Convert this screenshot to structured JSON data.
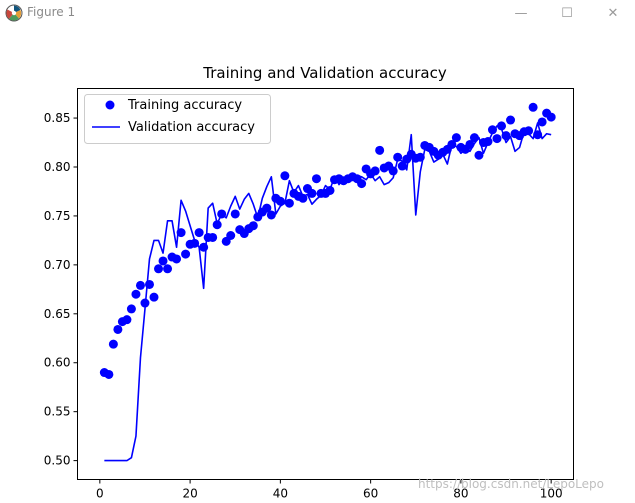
{
  "window": {
    "title": "Figure 1",
    "controls": {
      "minimize": "—",
      "maximize": "☐",
      "close": "✕"
    }
  },
  "watermark": "https://blog.csdn.net/LepoLepo",
  "colors": {
    "series": "#0000ff",
    "axis": "#000000",
    "background": "#ffffff"
  },
  "chart_data": {
    "type": "line",
    "title": "Training and Validation accuracy",
    "xlabel": "",
    "ylabel": "",
    "xlim": [
      -4.95,
      104.95
    ],
    "ylim": [
      0.4807,
      0.8802
    ],
    "xticks": [
      0,
      20,
      40,
      60,
      80,
      100
    ],
    "yticks": [
      0.5,
      0.55,
      0.6,
      0.65,
      0.7,
      0.75,
      0.8,
      0.85
    ],
    "grid": false,
    "legend": {
      "placement": "upper-left"
    },
    "series": [
      {
        "name": "Training accuracy",
        "style": "markers",
        "x": [
          1,
          2,
          3,
          4,
          5,
          6,
          7,
          8,
          9,
          10,
          11,
          12,
          13,
          14,
          15,
          16,
          17,
          18,
          19,
          20,
          21,
          22,
          23,
          24,
          25,
          26,
          27,
          28,
          29,
          30,
          31,
          32,
          33,
          34,
          35,
          36,
          37,
          38,
          39,
          40,
          41,
          42,
          43,
          44,
          45,
          46,
          47,
          48,
          49,
          50,
          51,
          52,
          53,
          54,
          55,
          56,
          57,
          58,
          59,
          60,
          61,
          62,
          63,
          64,
          65,
          66,
          67,
          68,
          69,
          70,
          71,
          72,
          73,
          74,
          75,
          76,
          77,
          78,
          79,
          80,
          81,
          82,
          83,
          84,
          85,
          86,
          87,
          88,
          89,
          90,
          91,
          92,
          93,
          94,
          95,
          96,
          97,
          98,
          99,
          100
        ],
        "values": [
          0.59,
          0.588,
          0.619,
          0.634,
          0.642,
          0.644,
          0.655,
          0.67,
          0.679,
          0.661,
          0.68,
          0.667,
          0.696,
          0.704,
          0.696,
          0.708,
          0.706,
          0.733,
          0.711,
          0.721,
          0.722,
          0.733,
          0.718,
          0.728,
          0.728,
          0.741,
          0.752,
          0.724,
          0.73,
          0.752,
          0.736,
          0.732,
          0.737,
          0.74,
          0.749,
          0.754,
          0.758,
          0.751,
          0.768,
          0.765,
          0.791,
          0.763,
          0.773,
          0.77,
          0.768,
          0.778,
          0.773,
          0.788,
          0.773,
          0.773,
          0.776,
          0.787,
          0.788,
          0.786,
          0.788,
          0.79,
          0.788,
          0.783,
          0.798,
          0.793,
          0.796,
          0.817,
          0.799,
          0.801,
          0.796,
          0.81,
          0.801,
          0.808,
          0.813,
          0.809,
          0.81,
          0.822,
          0.82,
          0.816,
          0.812,
          0.815,
          0.818,
          0.823,
          0.83,
          0.82,
          0.818,
          0.823,
          0.83,
          0.812,
          0.825,
          0.826,
          0.838,
          0.829,
          0.842,
          0.832,
          0.848,
          0.834,
          0.832,
          0.836,
          0.837,
          0.861,
          0.833,
          0.846,
          0.855,
          0.851
        ]
      },
      {
        "name": "Validation accuracy",
        "style": "line",
        "x": [
          1,
          2,
          3,
          4,
          5,
          6,
          7,
          8,
          9,
          10,
          11,
          12,
          13,
          14,
          15,
          16,
          17,
          18,
          19,
          20,
          21,
          22,
          23,
          24,
          25,
          26,
          27,
          28,
          29,
          30,
          31,
          32,
          33,
          34,
          35,
          36,
          37,
          38,
          39,
          40,
          41,
          42,
          43,
          44,
          45,
          46,
          47,
          48,
          49,
          50,
          51,
          52,
          53,
          54,
          55,
          56,
          57,
          58,
          59,
          60,
          61,
          62,
          63,
          64,
          65,
          66,
          67,
          68,
          69,
          70,
          71,
          72,
          73,
          74,
          75,
          76,
          77,
          78,
          79,
          80,
          81,
          82,
          83,
          84,
          85,
          86,
          87,
          88,
          89,
          90,
          91,
          92,
          93,
          94,
          95,
          96,
          97,
          98,
          99,
          100
        ],
        "values": [
          0.5,
          0.5,
          0.5,
          0.5,
          0.5,
          0.5,
          0.503,
          0.525,
          0.605,
          0.655,
          0.706,
          0.725,
          0.725,
          0.712,
          0.745,
          0.745,
          0.718,
          0.766,
          0.755,
          0.74,
          0.725,
          0.718,
          0.676,
          0.758,
          0.763,
          0.742,
          0.752,
          0.748,
          0.76,
          0.77,
          0.757,
          0.767,
          0.773,
          0.762,
          0.748,
          0.768,
          0.78,
          0.79,
          0.752,
          0.76,
          0.763,
          0.786,
          0.774,
          0.781,
          0.77,
          0.772,
          0.762,
          0.767,
          0.771,
          0.781,
          0.777,
          0.79,
          0.782,
          0.789,
          0.785,
          0.788,
          0.791,
          0.79,
          0.787,
          0.793,
          0.786,
          0.79,
          0.782,
          0.784,
          0.789,
          0.808,
          0.806,
          0.797,
          0.833,
          0.751,
          0.795,
          0.818,
          0.816,
          0.805,
          0.808,
          0.813,
          0.803,
          0.823,
          0.821,
          0.814,
          0.818,
          0.816,
          0.824,
          0.83,
          0.814,
          0.825,
          0.835,
          0.842,
          0.839,
          0.825,
          0.831,
          0.816,
          0.82,
          0.836,
          0.834,
          0.829,
          0.845,
          0.829,
          0.834,
          0.833
        ]
      }
    ]
  }
}
